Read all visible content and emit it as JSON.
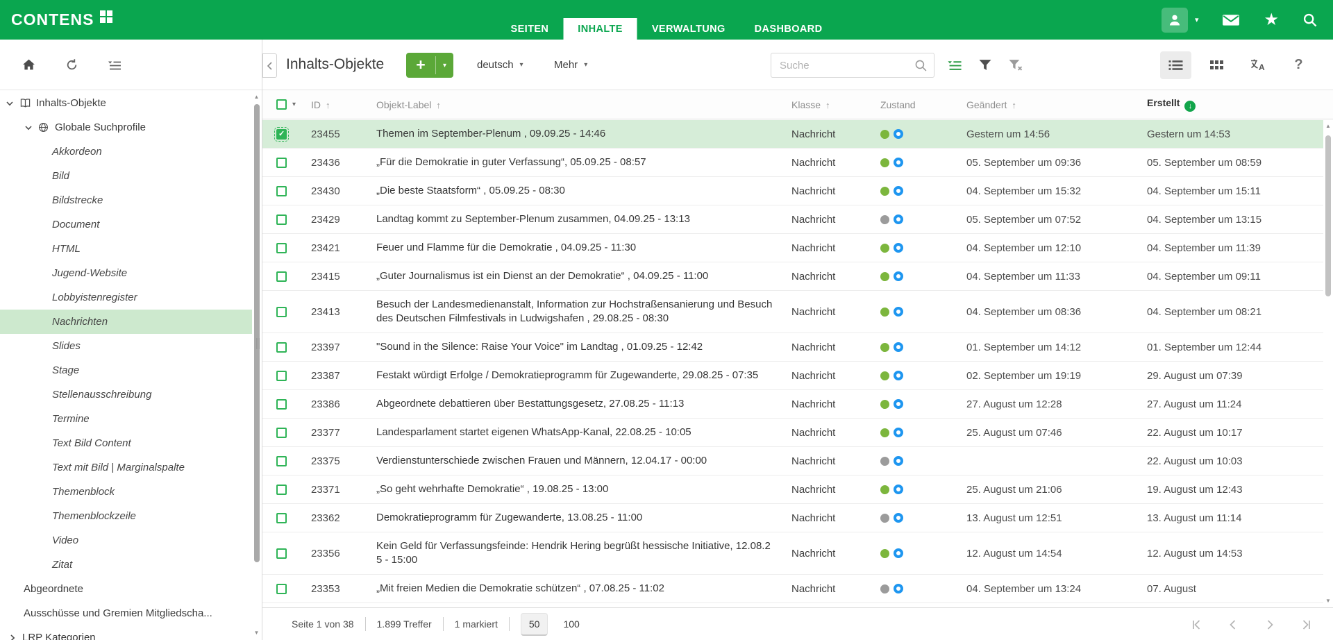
{
  "topbar": {
    "logo": "CONTENS",
    "tabs": [
      {
        "label": "SEITEN",
        "active": false
      },
      {
        "label": "INHALTE",
        "active": true
      },
      {
        "label": "VERWALTUNG",
        "active": false
      },
      {
        "label": "DASHBOARD",
        "active": false
      }
    ],
    "right_icons": [
      "user-avatar",
      "caret-down",
      "mail",
      "star",
      "search"
    ]
  },
  "sidebar": {
    "toolbar_icons": [
      "home",
      "refresh",
      "tree-options"
    ],
    "tree": [
      {
        "label": "Inhalts-Objekte",
        "level": 0,
        "icon": "book",
        "chevron": "down",
        "italic": false,
        "selected": false
      },
      {
        "label": "Globale Suchprofile",
        "level": 1,
        "icon": "globe",
        "chevron": "down",
        "italic": false,
        "selected": false
      },
      {
        "label": "Akkordeon",
        "level": 2,
        "italic": true,
        "selected": false
      },
      {
        "label": "Bild",
        "level": 2,
        "italic": true,
        "selected": false
      },
      {
        "label": "Bildstrecke",
        "level": 2,
        "italic": true,
        "selected": false
      },
      {
        "label": "Document",
        "level": 2,
        "italic": true,
        "selected": false
      },
      {
        "label": "HTML",
        "level": 2,
        "italic": true,
        "selected": false
      },
      {
        "label": "Jugend-Website",
        "level": 2,
        "italic": true,
        "selected": false
      },
      {
        "label": "Lobbyistenregister",
        "level": 2,
        "italic": true,
        "selected": false
      },
      {
        "label": "Nachrichten",
        "level": 2,
        "italic": true,
        "selected": true
      },
      {
        "label": "Slides",
        "level": 2,
        "italic": true,
        "selected": false
      },
      {
        "label": "Stage",
        "level": 2,
        "italic": true,
        "selected": false
      },
      {
        "label": "Stellenausschreibung",
        "level": 2,
        "italic": true,
        "selected": false
      },
      {
        "label": "Termine",
        "level": 2,
        "italic": true,
        "selected": false
      },
      {
        "label": "Text Bild Content",
        "level": 2,
        "italic": true,
        "selected": false
      },
      {
        "label": "Text mit Bild | Marginalspalte",
        "level": 2,
        "italic": true,
        "selected": false
      },
      {
        "label": "Themenblock",
        "level": 2,
        "italic": true,
        "selected": false
      },
      {
        "label": "Themenblockzeile",
        "level": 2,
        "italic": true,
        "selected": false
      },
      {
        "label": "Video",
        "level": 2,
        "italic": true,
        "selected": false
      },
      {
        "label": "Zitat",
        "level": 2,
        "italic": true,
        "selected": false
      },
      {
        "label": "Abgeordnete",
        "level": "root",
        "italic": false,
        "selected": false
      },
      {
        "label": "Ausschüsse und Gremien Mitgliedscha...",
        "level": "root",
        "italic": false,
        "selected": false
      },
      {
        "label": "LRP Kategorien",
        "level": "rootc",
        "chevron": "right",
        "italic": false,
        "selected": false
      }
    ]
  },
  "toolbar": {
    "title": "Inhalts-Objekte",
    "add_button": "+",
    "language": "deutsch",
    "more": "Mehr",
    "search_placeholder": "Suche",
    "icons": [
      "saved-search",
      "filter",
      "filter-clear",
      "list-view",
      "grid-view",
      "translate",
      "help"
    ]
  },
  "table": {
    "columns": [
      {
        "label": "ID",
        "sort": "asc"
      },
      {
        "label": "Objekt-Label",
        "sort": "asc"
      },
      {
        "label": "Klasse",
        "sort": "asc"
      },
      {
        "label": "Zustand",
        "sort": null
      },
      {
        "label": "Geändert",
        "sort": "asc"
      },
      {
        "label": "Erstellt",
        "sort": "desc",
        "active": true
      }
    ],
    "rows": [
      {
        "id": "23455",
        "label": "Themen im September-Plenum , 09.09.25 - 14:46",
        "klasse": "Nachricht",
        "state": "active",
        "modified": "Gestern um 14:56",
        "created": "Gestern um 14:53",
        "selected": true
      },
      {
        "id": "23436",
        "label": "„Für die Demokratie in guter Verfassung“, 05.09.25 - 08:57",
        "klasse": "Nachricht",
        "state": "active",
        "modified": "05. September um 09:36",
        "created": "05. September um 08:59",
        "selected": false
      },
      {
        "id": "23430",
        "label": "„Die beste Staatsform“ , 05.09.25 - 08:30",
        "klasse": "Nachricht",
        "state": "active",
        "modified": "04. September um 15:32",
        "created": "04. September um 15:11",
        "selected": false
      },
      {
        "id": "23429",
        "label": "Landtag kommt zu September-Plenum zusammen, 04.09.25 - 13:13",
        "klasse": "Nachricht",
        "state": "inactive",
        "modified": "05. September um 07:52",
        "created": "04. September um 13:15",
        "selected": false
      },
      {
        "id": "23421",
        "label": "Feuer und Flamme für die Demokratie , 04.09.25 - 11:30",
        "klasse": "Nachricht",
        "state": "active",
        "modified": "04. September um 12:10",
        "created": "04. September um 11:39",
        "selected": false
      },
      {
        "id": "23415",
        "label": "„Guter Journalismus ist ein Dienst an der Demokratie“ , 04.09.25 - 11:00",
        "klasse": "Nachricht",
        "state": "active",
        "modified": "04. September um 11:33",
        "created": "04. September um 09:11",
        "selected": false
      },
      {
        "id": "23413",
        "label": "Besuch der Landesmedienanstalt, Information zur Hochstraßensanierung und Besuch des Deutschen Filmfestivals in Ludwigshafen , 29.08.25 - 08:30",
        "klasse": "Nachricht",
        "state": "active",
        "modified": "04. September um 08:36",
        "created": "04. September um 08:21",
        "selected": false
      },
      {
        "id": "23397",
        "label": "\"Sound in the Silence: Raise Your Voice\" im Landtag , 01.09.25 - 12:42",
        "klasse": "Nachricht",
        "state": "active",
        "modified": "01. September um 14:12",
        "created": "01. September um 12:44",
        "selected": false
      },
      {
        "id": "23387",
        "label": "Festakt würdigt Erfolge / Demokratieprogramm für Zugewanderte, 29.08.25 - 07:35",
        "klasse": "Nachricht",
        "state": "active",
        "modified": "02. September um 19:19",
        "created": "29. August um 07:39",
        "selected": false
      },
      {
        "id": "23386",
        "label": "Abgeordnete debattieren über Bestattungsgesetz, 27.08.25 - 11:13",
        "klasse": "Nachricht",
        "state": "active",
        "modified": "27. August um 12:28",
        "created": "27. August um 11:24",
        "selected": false
      },
      {
        "id": "23377",
        "label": "Landesparlament startet eigenen WhatsApp-Kanal, 22.08.25 - 10:05",
        "klasse": "Nachricht",
        "state": "active",
        "modified": "25. August um 07:46",
        "created": "22. August um 10:17",
        "selected": false
      },
      {
        "id": "23375",
        "label": "Verdienstunterschiede zwischen Frauen und Männern, 12.04.17 - 00:00",
        "klasse": "Nachricht",
        "state": "inactive",
        "modified": "",
        "created": "22. August um 10:03",
        "selected": false
      },
      {
        "id": "23371",
        "label": "„So geht wehrhafte Demokratie“ , 19.08.25 - 13:00",
        "klasse": "Nachricht",
        "state": "active",
        "modified": "25. August um 21:06",
        "created": "19. August um 12:43",
        "selected": false
      },
      {
        "id": "23362",
        "label": "Demokratieprogramm für Zugewanderte, 13.08.25 - 11:00",
        "klasse": "Nachricht",
        "state": "inactive",
        "modified": "13. August um 12:51",
        "created": "13. August um 11:14",
        "selected": false
      },
      {
        "id": "23356",
        "label": "Kein Geld für Verfassungsfeinde: Hendrik Hering begrüßt hessische Initiative, 12.08.25 - 15:00",
        "klasse": "Nachricht",
        "state": "active",
        "modified": "12. August um 14:54",
        "created": "12. August um 14:53",
        "selected": false
      },
      {
        "id": "23353",
        "label": "„Mit freien Medien die Demokratie schützen“ , 07.08.25 - 11:02",
        "klasse": "Nachricht",
        "state": "inactive",
        "modified": "04. September um 13:24",
        "created": "07. August",
        "selected": false
      }
    ]
  },
  "footer": {
    "page_info": "Seite 1 von 38",
    "hits": "1.899 Treffer",
    "marked": "1 markiert",
    "page_sizes": [
      "50",
      "100"
    ],
    "active_page_size": "50"
  },
  "colors": {
    "brand_green": "#0aa64f",
    "button_green": "#5ba838",
    "status_green": "#7cb63d",
    "status_blue": "#1e96f0",
    "selection_green": "#d6edd8",
    "sidebar_selection_green": "#cde9ce"
  }
}
